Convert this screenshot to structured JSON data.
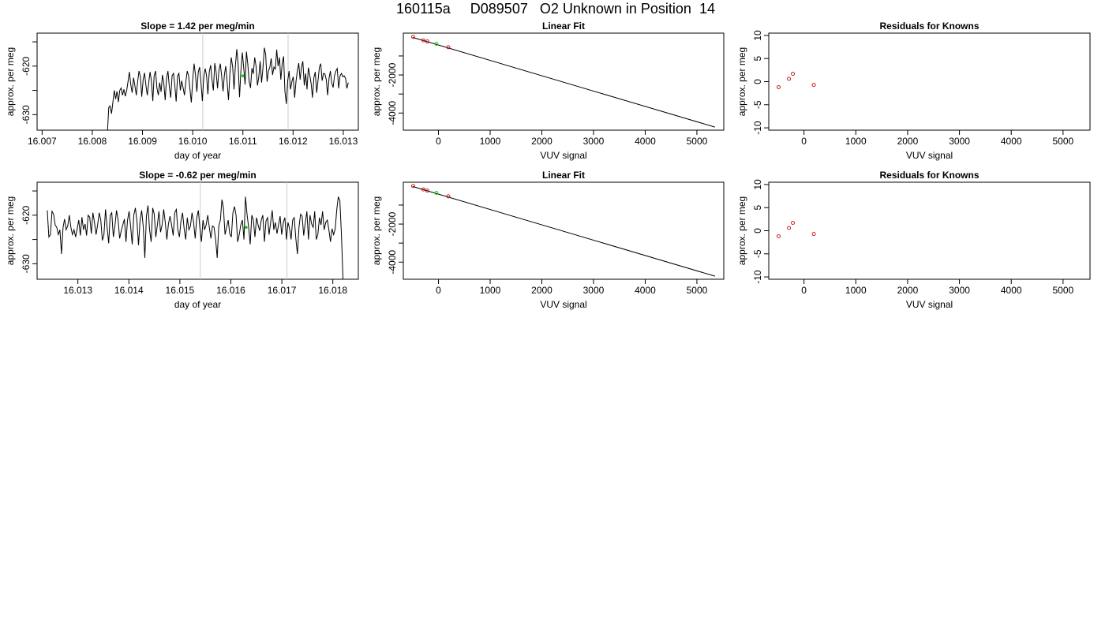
{
  "title": "160115a     D089507   O2 Unknown in Position  14",
  "chart_data": [
    {
      "type": "line",
      "title": "Slope =  1.42  per meg/min",
      "xlabel": "day of year",
      "ylabel": "approx. per meg",
      "xlim": [
        16.0069,
        16.0133
      ],
      "ylim": [
        -633.2,
        -613.2
      ],
      "xticks": [
        "16.007",
        "16.008",
        "16.009",
        "16.010",
        "16.011",
        "16.012",
        "16.013"
      ],
      "yticks": [
        "-630",
        "-620"
      ],
      "ytick_values": [
        -630,
        -620
      ],
      "extra_yticks": [
        -615,
        -625
      ],
      "x_start": 16.0083,
      "x_end": 16.0131,
      "series": [
        {
          "color": "#000000",
          "values": [
            -634.0,
            -628.5,
            -628.2,
            -629.8,
            -627.5,
            -625.0,
            -626.8,
            -625.2,
            -627.4,
            -625.0,
            -624.5,
            -626.0,
            -624.8,
            -626.2,
            -625.0,
            -623.2,
            -621.2,
            -623.8,
            -625.5,
            -622.4,
            -624.0,
            -626.0,
            -623.2,
            -621.0,
            -622.2,
            -626.3,
            -622.8,
            -621.4,
            -624.0,
            -626.0,
            -623.5,
            -621.2,
            -623.0,
            -627.2,
            -622.0,
            -621.0,
            -624.5,
            -626.0,
            -623.4,
            -625.3,
            -621.8,
            -623.5,
            -627.0,
            -622.5,
            -621.0,
            -624.2,
            -626.5,
            -622.0,
            -621.5,
            -624.0,
            -627.3,
            -622.0,
            -621.5,
            -625.0,
            -623.0,
            -624.5,
            -626.0,
            -623.2,
            -621.0,
            -622.0,
            -624.8,
            -627.5,
            -622.8,
            -619.5,
            -621.8,
            -625.3,
            -621.2,
            -620.2,
            -623.4,
            -627.2,
            -622.4,
            -620.5,
            -621.8,
            -625.8,
            -621.2,
            -619.8,
            -622.8,
            -625.0,
            -619.4,
            -621.2,
            -624.6,
            -621.0,
            -619.5,
            -622.0,
            -625.2,
            -621.8,
            -620.0,
            -623.4,
            -627.0,
            -621.5,
            -618.2,
            -620.2,
            -624.8,
            -620.0,
            -616.5,
            -619.6,
            -626.4,
            -621.0,
            -617.2,
            -620.2,
            -623.8,
            -617.0,
            -619.5,
            -623.2,
            -624.5,
            -620.4,
            -621.6,
            -618.2,
            -620.0,
            -624.0,
            -622.2,
            -619.0,
            -623.4,
            -620.5,
            -616.2,
            -617.6,
            -623.2,
            -621.0,
            -620.2,
            -618.4,
            -621.8,
            -620.2,
            -620.6,
            -616.6,
            -620.0,
            -618.2,
            -622.8,
            -619.4,
            -618.0,
            -625.2,
            -627.8,
            -623.0,
            -621.0,
            -624.8,
            -623.2,
            -622.2,
            -626.5,
            -623.2,
            -621.0,
            -619.4,
            -622.8,
            -620.2,
            -619.0,
            -624.0,
            -621.5,
            -624.8,
            -620.3,
            -621.8,
            -623.6,
            -626.5,
            -622.4,
            -621.2,
            -625.5,
            -623.0,
            -620.2,
            -619.5,
            -623.0,
            -621.5,
            -621.6,
            -622.8,
            -626.0,
            -622.5,
            -621.0,
            -623.5,
            -624.4,
            -622.0,
            -621.0,
            -620.5,
            -624.6,
            -622.0,
            -621.5,
            -622.2,
            -622.0,
            -622.5,
            -624.6,
            -623.4
          ]
        }
      ],
      "vlines": [
        16.0102,
        16.0119
      ],
      "highlight": [
        {
          "x": 16.011,
          "y": -622.0,
          "color": "#00cc00"
        }
      ]
    },
    {
      "type": "scatter",
      "title": "Linear Fit",
      "xlabel": "VUV signal",
      "ylabel": "approx. per meg",
      "xlim": [
        -680,
        5520
      ],
      "ylim": [
        -4900,
        200
      ],
      "xticks": [
        "0",
        "1000",
        "2000",
        "3000",
        "4000",
        "5000"
      ],
      "xtick_values": [
        0,
        1000,
        2000,
        3000,
        4000,
        5000
      ],
      "yticks": [
        "-4000",
        "-2000"
      ],
      "ytick_values": [
        -4000,
        -2000
      ],
      "extra_yticks": [
        -3000,
        -1000
      ],
      "line": {
        "x": [
          -500,
          5350
        ],
        "y": [
          -24,
          -4740
        ]
      },
      "series": [
        {
          "color": "#cc0000",
          "x": [
            -490,
            -290,
            -215,
            190
          ],
          "y": [
            2,
            -180,
            -240,
            -540
          ]
        },
        {
          "color": "#00cc00",
          "x": [
            -40
          ],
          "y": [
            -360
          ]
        }
      ]
    },
    {
      "type": "scatter",
      "title": "Residuals for Knowns",
      "xlabel": "VUV signal",
      "ylabel": "approx. per meg",
      "xlim": [
        -680,
        5520
      ],
      "ylim": [
        -10.5,
        10.5
      ],
      "xticks": [
        "0",
        "1000",
        "2000",
        "3000",
        "4000",
        "5000"
      ],
      "xtick_values": [
        0,
        1000,
        2000,
        3000,
        4000,
        5000
      ],
      "yticks": [
        "-10",
        "-5",
        "0",
        "5",
        "10"
      ],
      "ytick_values": [
        -10,
        -5,
        0,
        5,
        10
      ],
      "series": [
        {
          "color": "#cc0000",
          "x": [
            -490,
            -290,
            -215,
            190
          ],
          "y": [
            -1.2,
            0.6,
            1.7,
            -0.7
          ]
        }
      ]
    },
    {
      "type": "line",
      "title": "Slope =  -0.62  per meg/min",
      "xlabel": "day of year",
      "ylabel": "approx. per meg",
      "xlim": [
        16.0122,
        16.0185
      ],
      "ylim": [
        -633.2,
        -613.2
      ],
      "xticks": [
        "16.013",
        "16.014",
        "16.015",
        "16.016",
        "16.017",
        "16.018"
      ],
      "yticks": [
        "-630",
        "-620"
      ],
      "ytick_values": [
        -630,
        -620
      ],
      "extra_yticks": [
        -615,
        -625
      ],
      "x_start": 16.0124,
      "x_end": 16.0182,
      "series": [
        {
          "color": "#000000",
          "values": [
            -619.0,
            -624.5,
            -624.0,
            -619.2,
            -619.8,
            -622.0,
            -622.5,
            -624.0,
            -623.0,
            -628.0,
            -622.5,
            -620.8,
            -623.0,
            -622.2,
            -620.0,
            -622.5,
            -624.0,
            -623.0,
            -624.5,
            -622.8,
            -621.0,
            -624.2,
            -620.4,
            -623.0,
            -621.8,
            -624.2,
            -620.0,
            -620.4,
            -623.8,
            -619.5,
            -621.5,
            -624.0,
            -622.0,
            -619.5,
            -621.0,
            -625.2,
            -624.0,
            -618.8,
            -622.5,
            -625.8,
            -620.0,
            -619.5,
            -624.5,
            -622.2,
            -619.0,
            -621.0,
            -624.8,
            -623.2,
            -622.0,
            -620.8,
            -625.5,
            -621.0,
            -619.2,
            -622.5,
            -626.0,
            -620.0,
            -618.5,
            -621.2,
            -626.2,
            -621.0,
            -619.0,
            -622.4,
            -628.8,
            -620.2,
            -618.0,
            -623.0,
            -625.5,
            -618.5,
            -619.8,
            -624.5,
            -622.0,
            -619.2,
            -623.5,
            -622.0,
            -618.8,
            -621.5,
            -625.0,
            -621.8,
            -620.2,
            -622.0,
            -624.2,
            -619.5,
            -618.8,
            -623.0,
            -624.5,
            -621.2,
            -619.5,
            -622.8,
            -625.0,
            -620.5,
            -623.0,
            -622.2,
            -619.5,
            -621.5,
            -624.8,
            -620.5,
            -619.0,
            -622.5,
            -625.5,
            -621.0,
            -623.0,
            -622.0,
            -620.0,
            -622.5,
            -624.8,
            -622.2,
            -622.5,
            -625.0,
            -628.8,
            -622.2,
            -621.0,
            -616.8,
            -618.5,
            -624.0,
            -622.5,
            -621.0,
            -623.8,
            -624.5,
            -619.5,
            -618.2,
            -620.0,
            -625.5,
            -624.0,
            -622.0,
            -621.0,
            -625.0,
            -616.2,
            -619.8,
            -622.5,
            -626.0,
            -620.0,
            -621.0,
            -624.5,
            -620.5,
            -622.0,
            -623.2,
            -621.0,
            -620.0,
            -625.5,
            -621.2,
            -620.5,
            -624.0,
            -621.5,
            -619.0,
            -623.0,
            -621.5,
            -623.8,
            -622.0,
            -620.2,
            -624.0,
            -621.5,
            -620.5,
            -625.0,
            -621.5,
            -622.8,
            -625.0,
            -621.0,
            -620.5,
            -624.8,
            -628.0,
            -622.5,
            -619.8,
            -620.2,
            -624.2,
            -621.5,
            -619.2,
            -625.0,
            -620.0,
            -621.8,
            -622.5,
            -619.2,
            -625.0,
            -624.0,
            -620.5,
            -622.0,
            -619.2,
            -623.0,
            -621.5,
            -621.0,
            -623.0,
            -625.5,
            -622.8,
            -624.0,
            -622.8,
            -619.0,
            -616.2,
            -617.0,
            -624.0,
            -633.5
          ]
        }
      ],
      "vlines": [
        16.0154,
        16.0171
      ],
      "highlight": [
        {
          "x": 16.0163,
          "y": -622.5,
          "color": "#00cc00"
        }
      ]
    },
    {
      "type": "scatter",
      "title": "Linear Fit",
      "xlabel": "VUV signal",
      "ylabel": "approx. per meg",
      "xlim": [
        -680,
        5520
      ],
      "ylim": [
        -4900,
        200
      ],
      "xticks": [
        "0",
        "1000",
        "2000",
        "3000",
        "4000",
        "5000"
      ],
      "xtick_values": [
        0,
        1000,
        2000,
        3000,
        4000,
        5000
      ],
      "yticks": [
        "-4000",
        "-2000"
      ],
      "ytick_values": [
        -4000,
        -2000
      ],
      "extra_yticks": [
        -3000,
        -1000
      ],
      "line": {
        "x": [
          -500,
          5350
        ],
        "y": [
          -24,
          -4740
        ]
      },
      "series": [
        {
          "color": "#cc0000",
          "x": [
            -490,
            -290,
            -215,
            190
          ],
          "y": [
            2,
            -180,
            -240,
            -540
          ]
        },
        {
          "color": "#00cc00",
          "x": [
            -40
          ],
          "y": [
            -360
          ]
        }
      ]
    },
    {
      "type": "scatter",
      "title": "Residuals for Knowns",
      "xlabel": "VUV signal",
      "ylabel": "approx. per meg",
      "xlim": [
        -680,
        5520
      ],
      "ylim": [
        -10.5,
        10.5
      ],
      "xticks": [
        "0",
        "1000",
        "2000",
        "3000",
        "4000",
        "5000"
      ],
      "xtick_values": [
        0,
        1000,
        2000,
        3000,
        4000,
        5000
      ],
      "yticks": [
        "-10",
        "-5",
        "0",
        "5",
        "10"
      ],
      "ytick_values": [
        -10,
        -5,
        0,
        5,
        10
      ],
      "series": [
        {
          "color": "#cc0000",
          "x": [
            -490,
            -290,
            -215,
            190
          ],
          "y": [
            -1.2,
            0.6,
            1.7,
            -0.7
          ]
        }
      ]
    }
  ]
}
